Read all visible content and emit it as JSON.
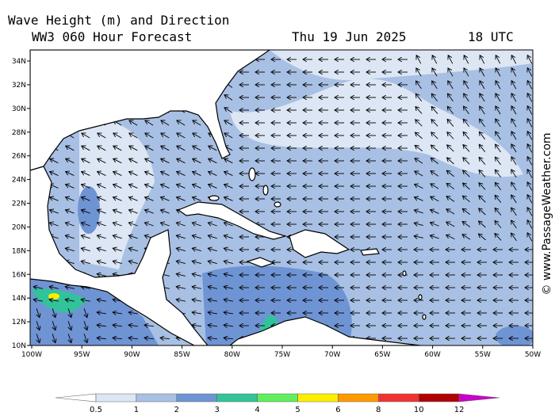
{
  "header": {
    "title": "Wave Height (m) and Direction",
    "model": "WW3 060 Hour Forecast",
    "date": "Thu 19 Jun 2025",
    "time": "18 UTC"
  },
  "lat_labels": [
    "34N",
    "32N",
    "30N",
    "28N",
    "26N",
    "24N",
    "22N",
    "20N",
    "18N",
    "16N",
    "14N",
    "12N",
    "10N"
  ],
  "lon_labels": [
    "100W",
    "95W",
    "90W",
    "85W",
    "80W",
    "75W",
    "70W",
    "65W",
    "60W",
    "55W",
    "50W"
  ],
  "legend": {
    "labels": [
      "0.5",
      "1",
      "2",
      "3",
      "4",
      "5",
      "6",
      "8",
      "10",
      "12"
    ],
    "colors": [
      "#ffffff",
      "#dce6f4",
      "#a8c0e4",
      "#6f94d4",
      "#33c39a",
      "#5fef5f",
      "#ffee00",
      "#ff9900",
      "#ef3333",
      "#b00000",
      "#cc00cc"
    ]
  },
  "credit": "© www.PassageWeather.com"
}
